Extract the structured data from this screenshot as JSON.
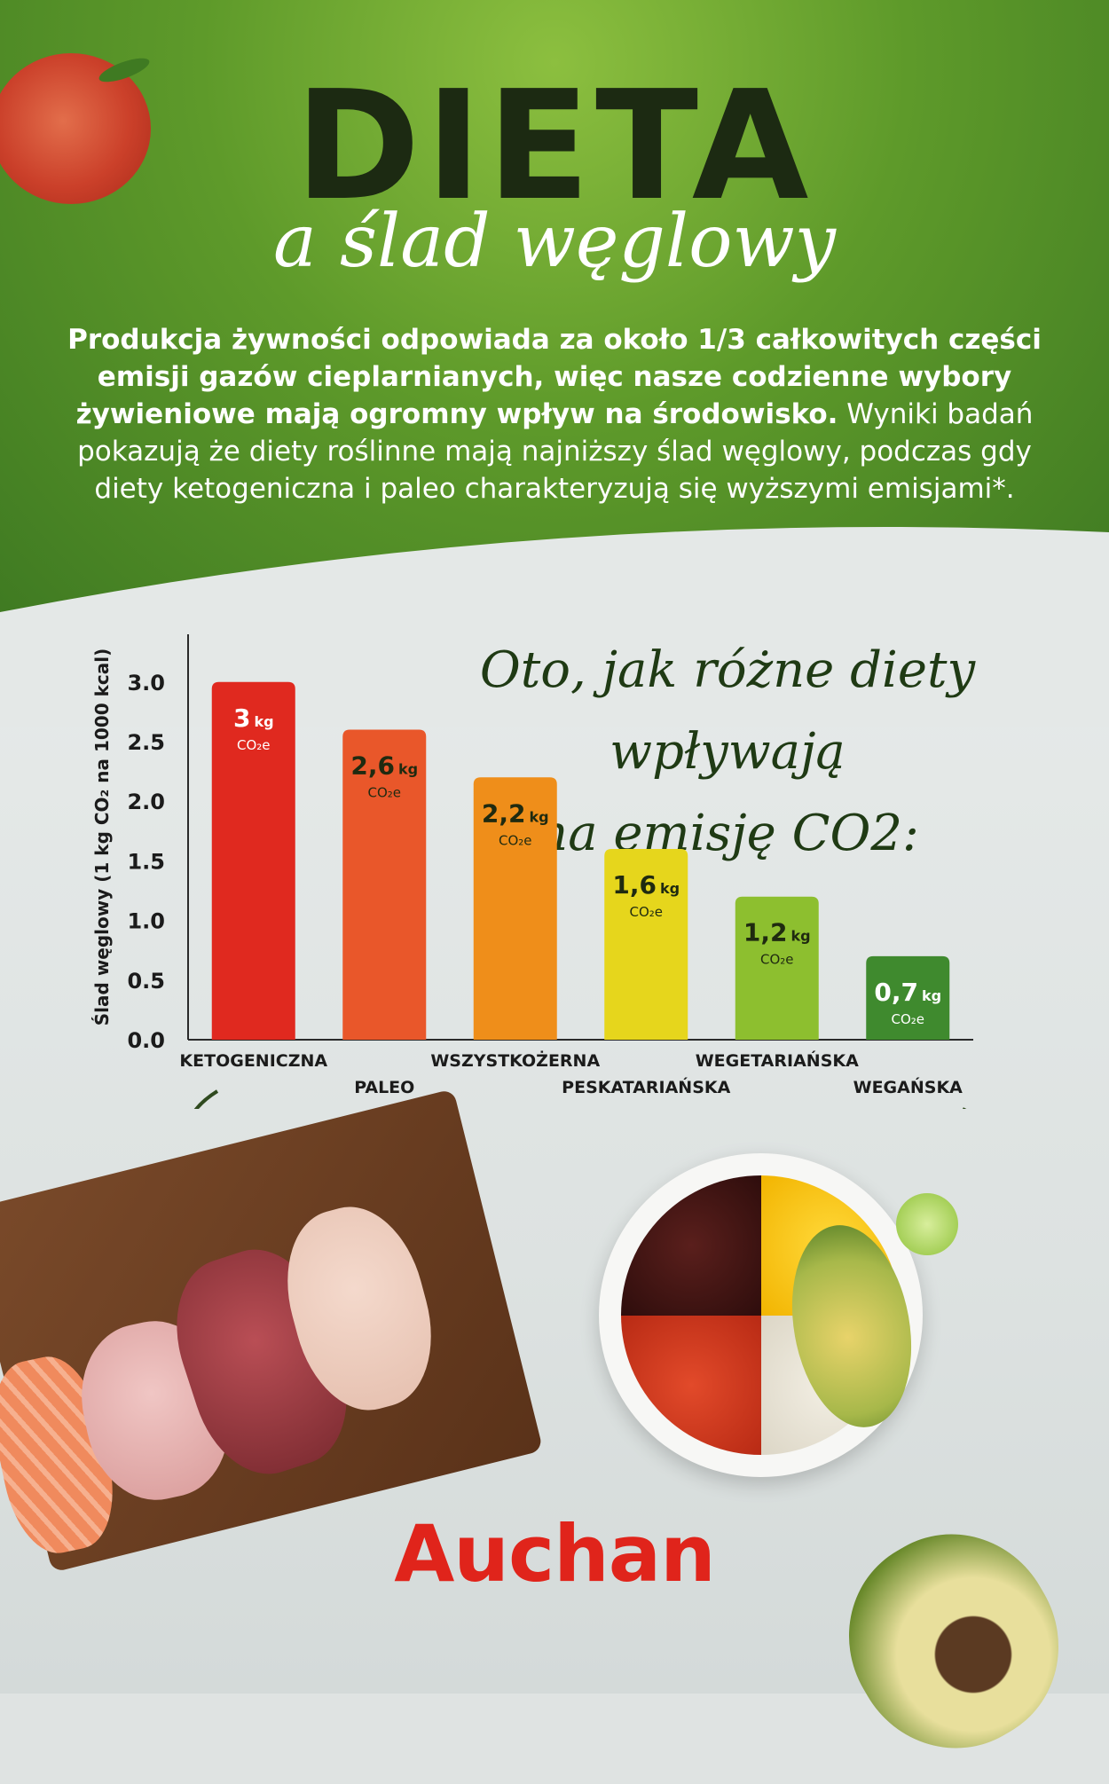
{
  "header": {
    "title": "DIETA",
    "subtitle": "a ślad węglowy"
  },
  "intro": {
    "bold": "Produkcja żywności odpowiada za około 1/3 całkowitych części emisji gazów cieplarnianych, więc nasze codzienne wybory żywieniowe mają ogromny wpływ na środowisko.",
    "regular": " Wyniki badań pokazują że diety roślinne mają najniższy ślad węglowy, podczas gdy diety ketogeniczna i paleo charakteryzują się wyższymi emisjami*."
  },
  "headline": {
    "line1": "Oto, jak różne diety wpływają",
    "line2": "na emisję CO2:"
  },
  "chart_data": {
    "type": "bar",
    "ylabel": "Ślad węglowy (1 kg CO₂ na 1000 kcal)",
    "ylim": [
      0,
      3.4
    ],
    "yticks": [
      "0.0",
      "0.5",
      "1.0",
      "1.5",
      "2.0",
      "2.5",
      "3.0"
    ],
    "categories": [
      "KETOGENICZNA",
      "PALEO",
      "WSZYSTKOŻERNA",
      "PESKATARIAŃSKA",
      "WEGETARIAŃSKA",
      "WEGAŃSKA"
    ],
    "values": [
      3.0,
      2.6,
      2.2,
      1.6,
      1.2,
      0.7
    ],
    "value_labels": [
      "3",
      "2,6",
      "2,2",
      "1,6",
      "1,2",
      "0,7"
    ],
    "unit_label": "kg",
    "sub_label": "CO₂e",
    "colors": [
      "#e0291f",
      "#e9572a",
      "#ef8e1a",
      "#e6d61c",
      "#8dbf2f",
      "#3f8a2e"
    ],
    "label_colors": [
      "#ffffff",
      "#1f2a10",
      "#1f2a10",
      "#1f2a10",
      "#1f2a10",
      "#ffffff"
    ],
    "grid": false,
    "legend": "none"
  },
  "brand": {
    "logo": "Auchan",
    "logo_color": "#e0241b"
  }
}
